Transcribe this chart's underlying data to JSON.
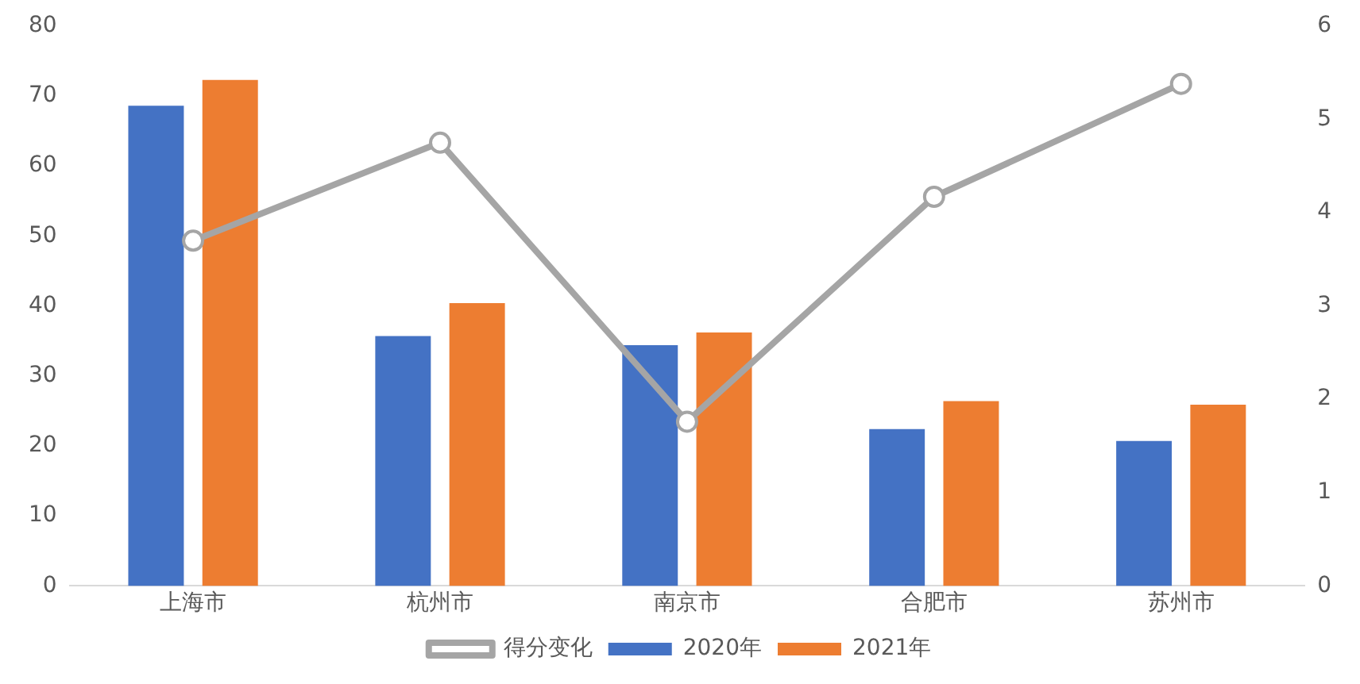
{
  "chart_data": {
    "type": "bar",
    "categories": [
      "上海市",
      "杭州市",
      "南京市",
      "合肥市",
      "苏州市"
    ],
    "series": [
      {
        "name": "2020年",
        "color": "#4472c4",
        "values": [
          68.6,
          35.7,
          34.4,
          22.4,
          20.7
        ]
      },
      {
        "name": "2021年",
        "color": "#ed7d31",
        "values": [
          72.3,
          40.4,
          36.2,
          26.4,
          25.9
        ]
      },
      {
        "name": "得分变化",
        "type": "line",
        "axis": "y2",
        "color": "#a5a5a5",
        "values": [
          3.7,
          4.75,
          1.76,
          4.17,
          5.38
        ]
      }
    ],
    "ylim": [
      0,
      80
    ],
    "yticks": [
      0,
      10,
      20,
      30,
      40,
      50,
      60,
      70,
      80
    ],
    "y2lim": [
      0,
      6
    ],
    "y2ticks": [
      0,
      1,
      2,
      3,
      4,
      5,
      6
    ],
    "grid": false,
    "legend": "bottom",
    "marker": "circle",
    "line_style": "solid"
  }
}
